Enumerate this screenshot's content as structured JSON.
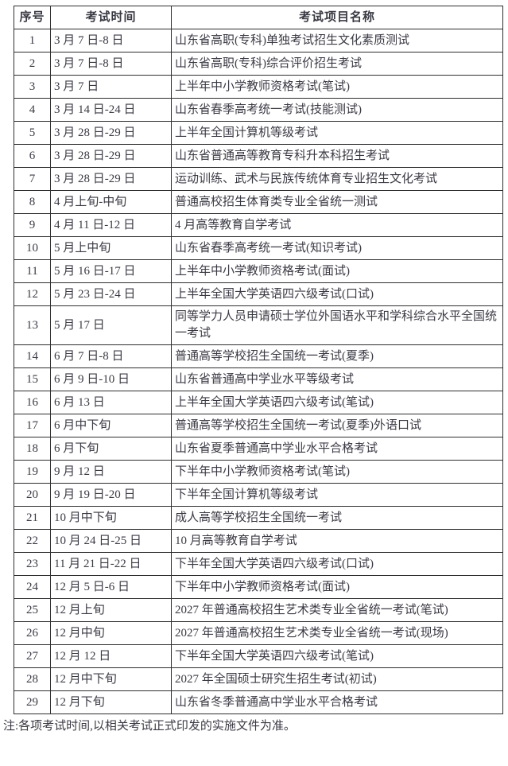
{
  "colors": {
    "text": "#3a3a44",
    "border": "#2f2f2f",
    "background": "#ffffff"
  },
  "table": {
    "headers": [
      "序号",
      "考试时间",
      "考试项目名称"
    ],
    "rows": [
      {
        "num": "1",
        "time": "3 月 7 日-8 日",
        "name": "山东省高职(专科)单独考试招生文化素质测试"
      },
      {
        "num": "2",
        "time": "3 月 7 日-8 日",
        "name": "山东省高职(专科)综合评价招生考试"
      },
      {
        "num": "3",
        "time": "3 月 7 日",
        "name": "上半年中小学教师资格考试(笔试)"
      },
      {
        "num": "4",
        "time": "3 月 14 日-24 日",
        "name": "山东省春季高考统一考试(技能测试)"
      },
      {
        "num": "5",
        "time": "3 月 28 日-29 日",
        "name": "上半年全国计算机等级考试"
      },
      {
        "num": "6",
        "time": "3 月 28 日-29 日",
        "name": "山东省普通高等教育专科升本科招生考试"
      },
      {
        "num": "7",
        "time": "3 月 28 日-29 日",
        "name": "运动训练、武术与民族传统体育专业招生文化考试"
      },
      {
        "num": "8",
        "time": "4 月上旬-中旬",
        "name": "普通高校招生体育类专业全省统一测试"
      },
      {
        "num": "9",
        "time": "4 月 11 日-12 日",
        "name": "4 月高等教育自学考试"
      },
      {
        "num": "10",
        "time": "5 月上中旬",
        "name": "山东省春季高考统一考试(知识考试)"
      },
      {
        "num": "11",
        "time": "5 月 16 日-17 日",
        "name": "上半年中小学教师资格考试(面试)"
      },
      {
        "num": "12",
        "time": "5 月 23 日-24 日",
        "name": "上半年全国大学英语四六级考试(口试)"
      },
      {
        "num": "13",
        "time": "5 月 17 日",
        "name": "同等学力人员申请硕士学位外国语水平和学科综合水平全国统一考试"
      },
      {
        "num": "14",
        "time": "6 月 7 日-8 日",
        "name": "普通高等学校招生全国统一考试(夏季)"
      },
      {
        "num": "15",
        "time": "6 月 9 日-10 日",
        "name": "山东省普通高中学业水平等级考试"
      },
      {
        "num": "16",
        "time": "6 月 13 日",
        "name": "上半年全国大学英语四六级考试(笔试)"
      },
      {
        "num": "17",
        "time": "6 月中下旬",
        "name": "普通高等学校招生全国统一考试(夏季)外语口试"
      },
      {
        "num": "18",
        "time": "6 月下旬",
        "name": "山东省夏季普通高中学业水平合格考试"
      },
      {
        "num": "19",
        "time": "9 月 12 日",
        "name": "下半年中小学教师资格考试(笔试)"
      },
      {
        "num": "20",
        "time": "9 月 19 日-20 日",
        "name": "下半年全国计算机等级考试"
      },
      {
        "num": "21",
        "time": "10 月中下旬",
        "name": "成人高等学校招生全国统一考试"
      },
      {
        "num": "22",
        "time": "10 月 24 日-25 日",
        "name": "10 月高等教育自学考试"
      },
      {
        "num": "23",
        "time": "11 月 21 日-22 日",
        "name": "下半年全国大学英语四六级考试(口试)"
      },
      {
        "num": "24",
        "time": "12 月 5 日-6 日",
        "name": "下半年中小学教师资格考试(面试)"
      },
      {
        "num": "25",
        "time": "12 月上旬",
        "name": "2027 年普通高校招生艺术类专业全省统一考试(笔试)"
      },
      {
        "num": "26",
        "time": "12 月中旬",
        "name": "2027 年普通高校招生艺术类专业全省统一考试(现场)"
      },
      {
        "num": "27",
        "time": "12 月 12 日",
        "name": "下半年全国大学英语四六级考试(笔试)"
      },
      {
        "num": "28",
        "time": "12 月中下旬",
        "name": "2027 年全国硕士研究生招生考试(初试)"
      },
      {
        "num": "29",
        "time": "12 月下旬",
        "name": "山东省冬季普通高中学业水平合格考试"
      }
    ]
  },
  "note": "注:各项考试时间,以相关考试正式印发的实施文件为准。"
}
